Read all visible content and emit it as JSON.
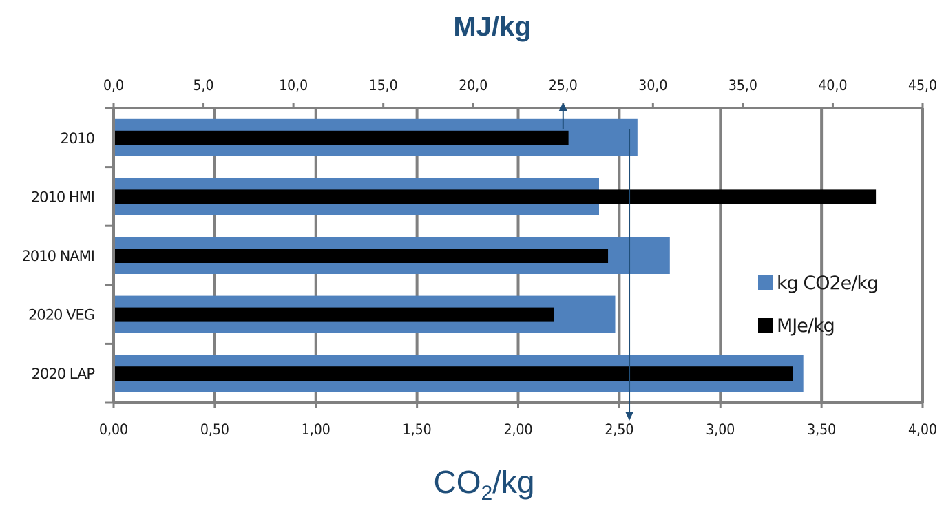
{
  "chart_data": {
    "type": "bar",
    "orientation": "horizontal",
    "top_axis_title": "MJ/kg",
    "bottom_axis_title": "CO₂/kg",
    "categories": [
      "2010",
      "2010 HMI",
      "2010 NAMI",
      "2020 VEG",
      "2020 LAP"
    ],
    "series": [
      {
        "name": "kg CO2e/kg",
        "axis": "bottom",
        "color": "#4f81bd",
        "values": [
          2.59,
          2.4,
          2.75,
          2.48,
          3.41
        ]
      },
      {
        "name": "MJe/kg",
        "axis": "top",
        "color": "#000000",
        "values": [
          25.3,
          42.4,
          27.5,
          24.5,
          37.8
        ]
      }
    ],
    "top_axis": {
      "range": [
        0,
        45
      ],
      "ticks": [
        "0,0",
        "5,0",
        "10,0",
        "15,0",
        "20,0",
        "25,0",
        "30,0",
        "35,0",
        "40,0",
        "45,0"
      ]
    },
    "bottom_axis": {
      "range": [
        0,
        4
      ],
      "ticks": [
        "0,00",
        "0,50",
        "1,00",
        "1,50",
        "2,00",
        "2,50",
        "3,00",
        "3,50",
        "4,00"
      ]
    },
    "gridlines": true,
    "legend_position": "right",
    "annotation_arrows": [
      {
        "axis": "top",
        "value": 25.0,
        "direction": "up"
      },
      {
        "axis": "bottom",
        "value": 2.55,
        "direction": "down"
      }
    ],
    "arrow_color": "#1f4e79"
  }
}
